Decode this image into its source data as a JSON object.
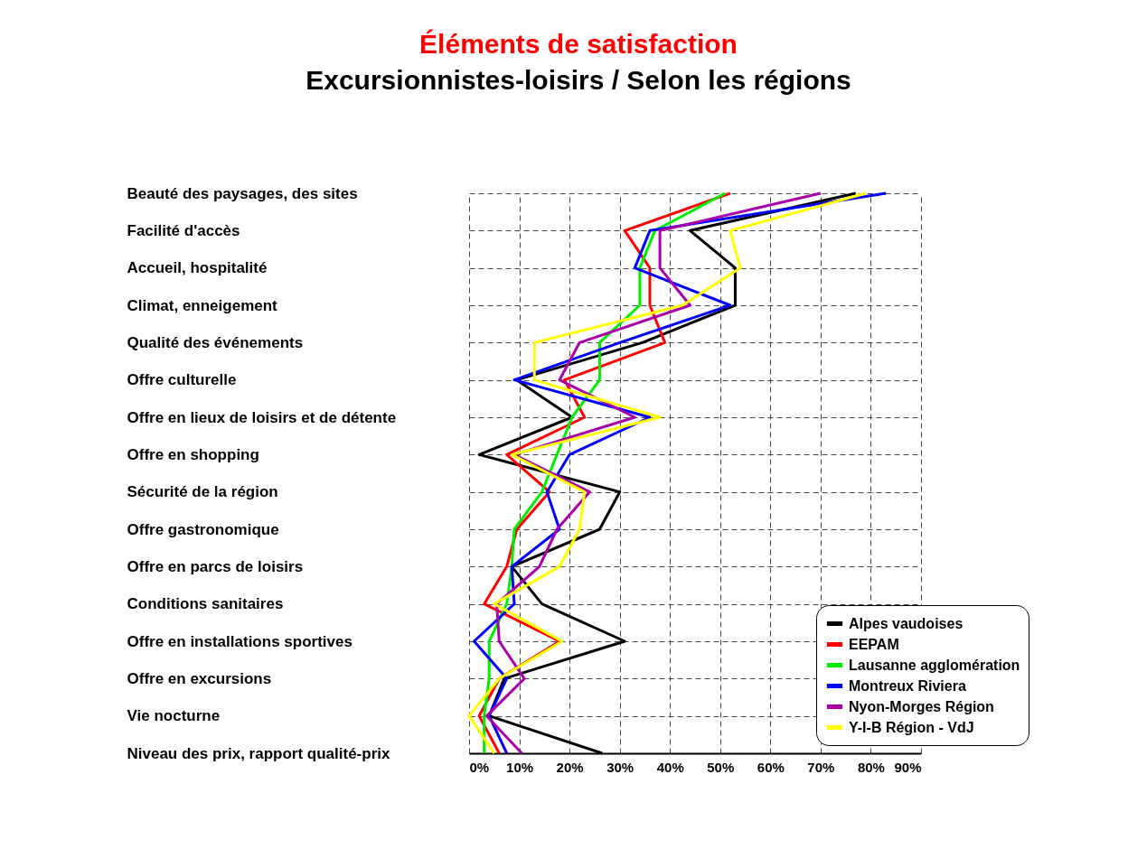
{
  "chart_data": {
    "type": "line",
    "title": "Éléments de satisfaction",
    "subtitle": "Excursionnistes-loisirs / Selon les régions",
    "orientation": "horizontal",
    "categories": [
      "Beauté des paysages, des sites",
      "Facilité d'accès",
      "Accueil, hospitalité",
      "Climat, enneigement",
      "Qualité des événements",
      "Offre culturelle",
      "Offre en lieux de loisirs et de détente",
      "Offre en shopping",
      "Sécurité de la région",
      "Offre gastronomique",
      "Offre en parcs de loisirs",
      "Conditions sanitaires",
      "Offre en installations sportives",
      "Offre en excursions",
      "Vie nocturne",
      "Niveau des prix, rapport qualité-prix"
    ],
    "series": [
      {
        "name": "Alpes vaudoises",
        "color": "#000000",
        "values": [
          77,
          44,
          53,
          53,
          34.5,
          9.5,
          20.5,
          2,
          30,
          26,
          8.5,
          14.5,
          31,
          7,
          4,
          26.5
        ]
      },
      {
        "name": "EEPAM",
        "color": "#ff0000",
        "values": [
          52,
          31,
          36,
          36,
          39,
          19,
          23,
          7.5,
          16,
          9.5,
          7.5,
          3,
          18,
          6,
          2,
          6
        ]
      },
      {
        "name": "Lausanne agglomération",
        "color": "#00ee00",
        "values": [
          51,
          37,
          34,
          34,
          26,
          26,
          20.5,
          17.5,
          14.5,
          9,
          8.5,
          7.5,
          4,
          4,
          3,
          3
        ]
      },
      {
        "name": "Montreux Riviera",
        "color": "#0000ff",
        "values": [
          83,
          36,
          33,
          52,
          30,
          9,
          36,
          20,
          15.5,
          18,
          8.5,
          9,
          1,
          7.5,
          4,
          7.5
        ]
      },
      {
        "name": "Nyon-Morges Région",
        "color": "#aa00aa",
        "values": [
          70,
          38,
          38,
          44,
          22,
          18,
          33,
          9,
          24,
          17.5,
          14,
          5.5,
          6,
          11,
          3.5,
          10.5
        ]
      },
      {
        "name": "Y-I-B Région - VdJ",
        "color": "#ffff00",
        "values": [
          79,
          52,
          54,
          42.5,
          13,
          13,
          38,
          8.5,
          23,
          22,
          18,
          5,
          18.5,
          6,
          0,
          5
        ]
      }
    ],
    "xlim": [
      0,
      90
    ],
    "xticks": [
      {
        "value": 0,
        "label": "0%"
      },
      {
        "value": 10,
        "label": "10%"
      },
      {
        "value": 20,
        "label": "20%"
      },
      {
        "value": 30,
        "label": "30%"
      },
      {
        "value": 40,
        "label": "40%"
      },
      {
        "value": 50,
        "label": "50%"
      },
      {
        "value": 60,
        "label": "60%"
      },
      {
        "value": 70,
        "label": "70%"
      },
      {
        "value": 80,
        "label": "80%"
      },
      {
        "value": 90,
        "label": "90%"
      }
    ],
    "grid": true,
    "legend": "bottom right",
    "marker": "none",
    "line_style": "solid"
  }
}
